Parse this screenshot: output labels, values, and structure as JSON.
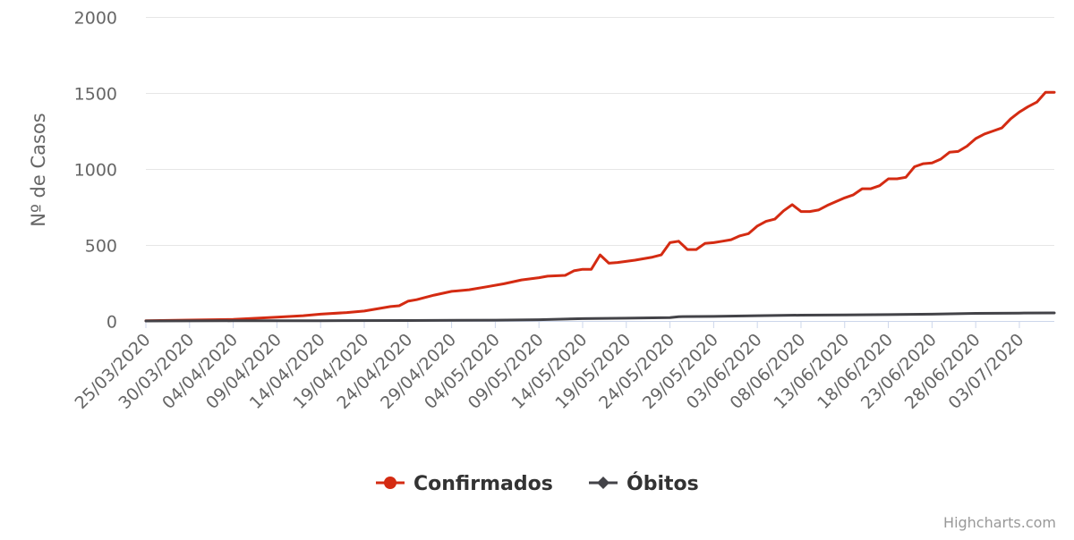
{
  "chart_data": {
    "type": "line",
    "ylabel": "Nº de Casos",
    "xlabel": "",
    "ylim": [
      0,
      2000
    ],
    "yticks": [
      0,
      500,
      1000,
      1500,
      2000
    ],
    "xtick_labels": [
      "25/03/2020",
      "30/03/2020",
      "04/04/2020",
      "09/04/2020",
      "14/04/2020",
      "19/04/2020",
      "24/04/2020",
      "29/04/2020",
      "04/05/2020",
      "09/05/2020",
      "14/05/2020",
      "19/05/2020",
      "24/05/2020",
      "29/05/2020",
      "03/06/2020",
      "08/06/2020",
      "13/06/2020",
      "18/06/2020",
      "23/06/2020",
      "28/06/2020",
      "03/07/2020"
    ],
    "x_start": "25/03/2020",
    "x_end": "07/07/2020",
    "grid": true,
    "legend_position": "bottom-center",
    "series": [
      {
        "name": "Confirmados",
        "color": "#d42b12",
        "marker": "circle",
        "points": [
          [
            "25/03/2020",
            1
          ],
          [
            "30/03/2020",
            6
          ],
          [
            "04/04/2020",
            10
          ],
          [
            "09/04/2020",
            25
          ],
          [
            "12/04/2020",
            35
          ],
          [
            "14/04/2020",
            45
          ],
          [
            "17/04/2020",
            55
          ],
          [
            "19/04/2020",
            65
          ],
          [
            "22/04/2020",
            95
          ],
          [
            "23/04/2020",
            100
          ],
          [
            "24/04/2020",
            130
          ],
          [
            "25/04/2020",
            140
          ],
          [
            "27/04/2020",
            170
          ],
          [
            "29/04/2020",
            195
          ],
          [
            "01/05/2020",
            205
          ],
          [
            "03/05/2020",
            225
          ],
          [
            "05/05/2020",
            245
          ],
          [
            "07/05/2020",
            270
          ],
          [
            "09/05/2020",
            285
          ],
          [
            "10/05/2020",
            295
          ],
          [
            "12/05/2020",
            300
          ],
          [
            "13/05/2020",
            330
          ],
          [
            "14/05/2020",
            340
          ],
          [
            "15/05/2020",
            340
          ],
          [
            "16/05/2020",
            435
          ],
          [
            "17/05/2020",
            380
          ],
          [
            "18/05/2020",
            385
          ],
          [
            "20/05/2020",
            400
          ],
          [
            "22/05/2020",
            420
          ],
          [
            "23/05/2020",
            435
          ],
          [
            "24/05/2020",
            515
          ],
          [
            "25/05/2020",
            525
          ],
          [
            "26/05/2020",
            470
          ],
          [
            "27/05/2020",
            470
          ],
          [
            "28/05/2020",
            510
          ],
          [
            "29/05/2020",
            515
          ],
          [
            "30/05/2020",
            525
          ],
          [
            "31/05/2020",
            535
          ],
          [
            "01/06/2020",
            560
          ],
          [
            "02/06/2020",
            575
          ],
          [
            "03/06/2020",
            625
          ],
          [
            "04/06/2020",
            655
          ],
          [
            "05/06/2020",
            670
          ],
          [
            "06/06/2020",
            725
          ],
          [
            "07/06/2020",
            765
          ],
          [
            "08/06/2020",
            720
          ],
          [
            "09/06/2020",
            720
          ],
          [
            "10/06/2020",
            730
          ],
          [
            "11/06/2020",
            760
          ],
          [
            "12/06/2020",
            785
          ],
          [
            "13/06/2020",
            810
          ],
          [
            "14/06/2020",
            830
          ],
          [
            "15/06/2020",
            870
          ],
          [
            "16/06/2020",
            870
          ],
          [
            "17/06/2020",
            890
          ],
          [
            "18/06/2020",
            935
          ],
          [
            "19/06/2020",
            935
          ],
          [
            "20/06/2020",
            945
          ],
          [
            "21/06/2020",
            1015
          ],
          [
            "22/06/2020",
            1035
          ],
          [
            "23/06/2020",
            1040
          ],
          [
            "24/06/2020",
            1065
          ],
          [
            "25/06/2020",
            1110
          ],
          [
            "26/06/2020",
            1115
          ],
          [
            "27/06/2020",
            1150
          ],
          [
            "28/06/2020",
            1200
          ],
          [
            "29/06/2020",
            1230
          ],
          [
            "30/06/2020",
            1250
          ],
          [
            "01/07/2020",
            1270
          ],
          [
            "02/07/2020",
            1330
          ],
          [
            "03/07/2020",
            1375
          ],
          [
            "04/07/2020",
            1410
          ],
          [
            "05/07/2020",
            1440
          ],
          [
            "06/07/2020",
            1505
          ],
          [
            "07/07/2020",
            1505
          ]
        ]
      },
      {
        "name": "Óbitos",
        "color": "#434348",
        "marker": "diamond",
        "points": [
          [
            "25/03/2020",
            0
          ],
          [
            "04/04/2020",
            1
          ],
          [
            "14/04/2020",
            2
          ],
          [
            "24/04/2020",
            3
          ],
          [
            "04/05/2020",
            5
          ],
          [
            "09/05/2020",
            8
          ],
          [
            "14/05/2020",
            15
          ],
          [
            "19/05/2020",
            18
          ],
          [
            "24/05/2020",
            22
          ],
          [
            "25/05/2020",
            28
          ],
          [
            "29/05/2020",
            30
          ],
          [
            "03/06/2020",
            35
          ],
          [
            "08/06/2020",
            38
          ],
          [
            "13/06/2020",
            40
          ],
          [
            "18/06/2020",
            42
          ],
          [
            "23/06/2020",
            45
          ],
          [
            "28/06/2020",
            50
          ],
          [
            "03/07/2020",
            52
          ],
          [
            "07/07/2020",
            53
          ]
        ]
      }
    ]
  },
  "credits": "Highcharts.com"
}
